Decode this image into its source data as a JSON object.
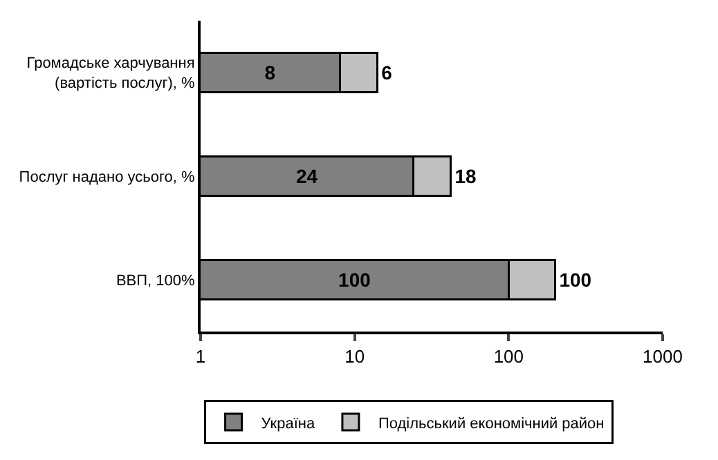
{
  "chart_data": {
    "type": "bar",
    "orientation": "horizontal",
    "stacked": true,
    "log": "x",
    "categories": [
      "Громадське харчування\n(вартість послуг), %",
      "Послуг надано усього, %",
      "ВВП, 100%"
    ],
    "series": [
      {
        "name": "Україна",
        "color": "#808080",
        "values": [
          8,
          24,
          100
        ]
      },
      {
        "name": "Подільський економічний район",
        "color": "#c0c0c0",
        "values": [
          6,
          18,
          100
        ]
      }
    ],
    "xlim": [
      1,
      1000
    ],
    "xticks": [
      1,
      10,
      100,
      1000
    ],
    "data_labels": true,
    "legend": "bottom"
  }
}
